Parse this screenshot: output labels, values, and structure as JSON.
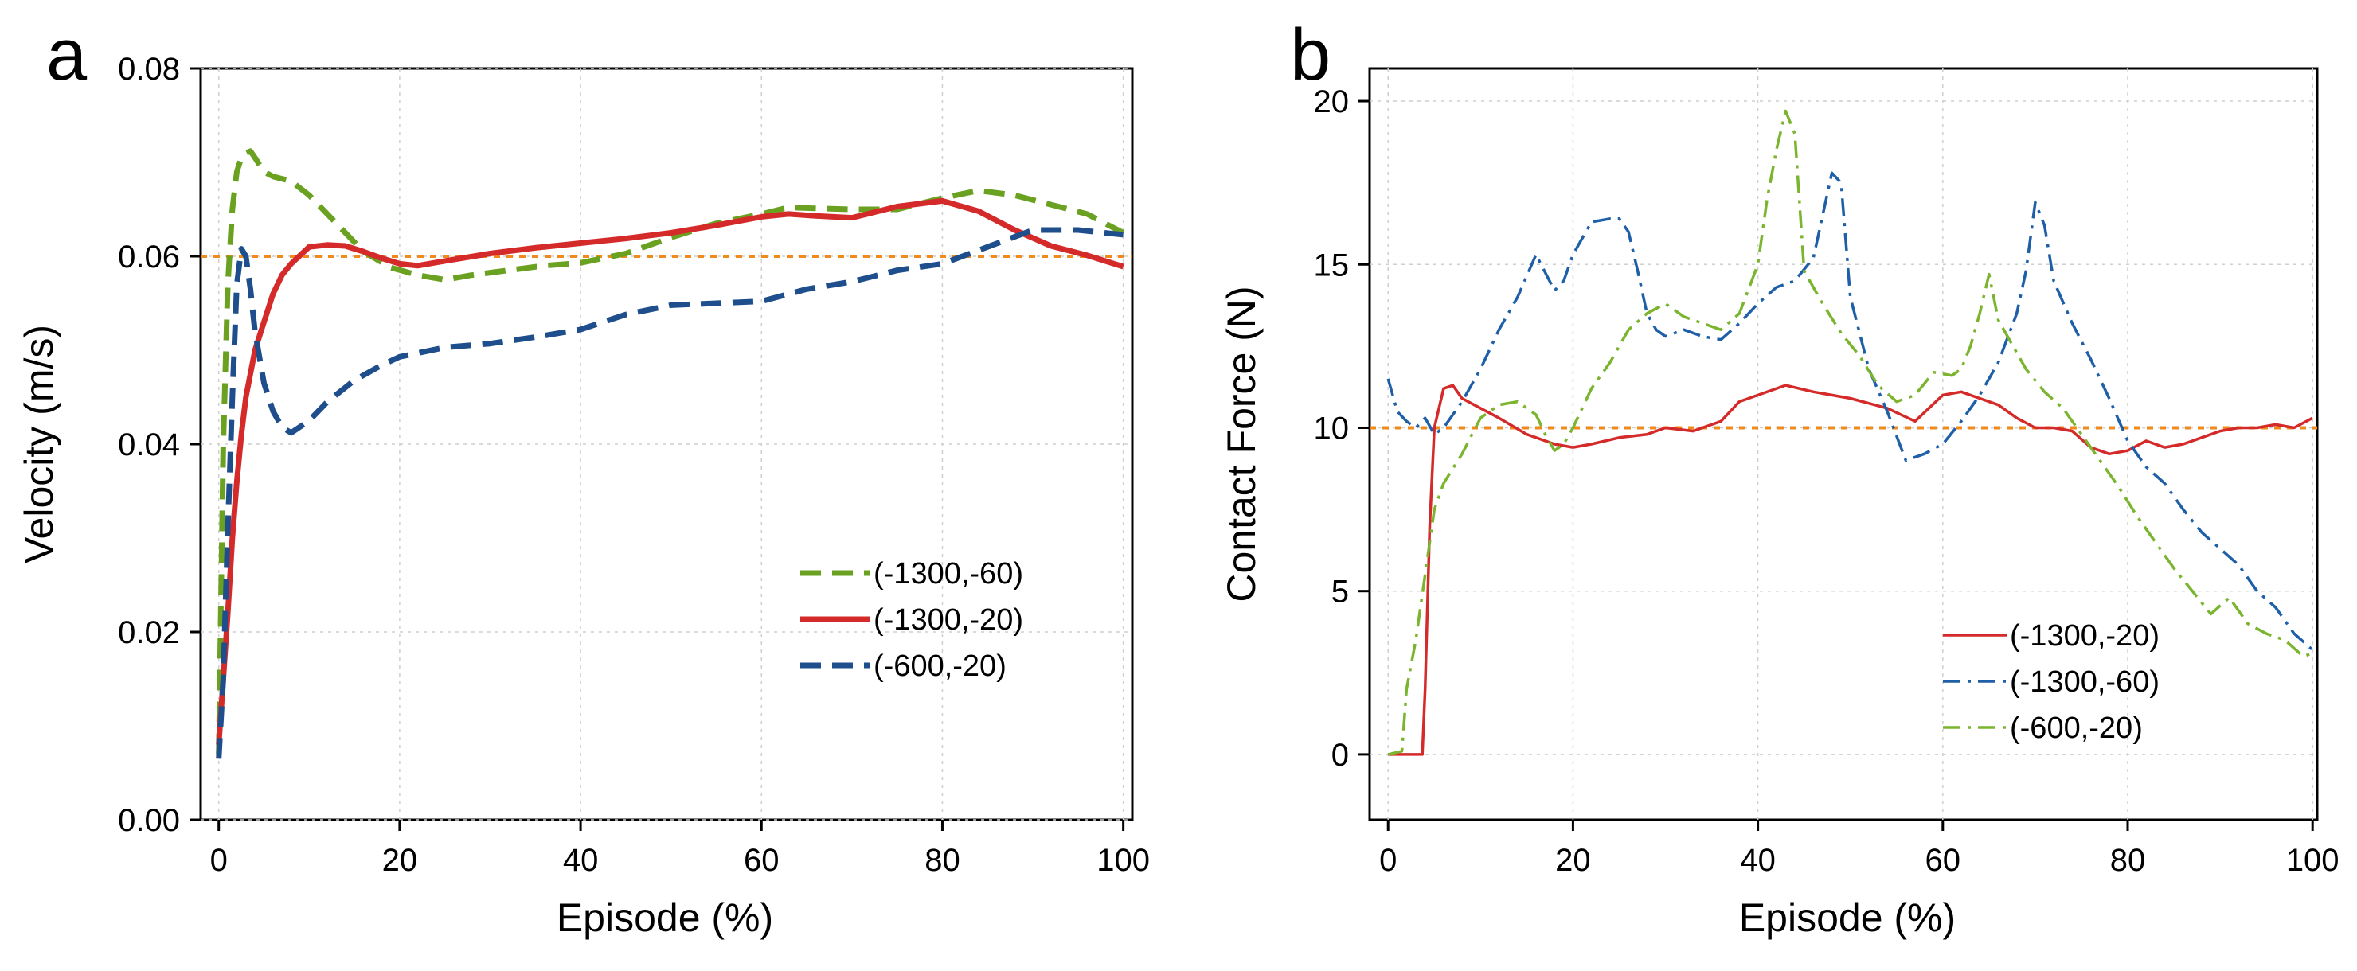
{
  "chart_data": [
    {
      "panel": "a",
      "type": "line",
      "title": "",
      "xlabel": "Episode (%)",
      "ylabel": "Velocity (m/s)",
      "xlim": [
        -2,
        101
      ],
      "ylim": [
        0.0,
        0.08
      ],
      "xticks": [
        0,
        20,
        40,
        60,
        80,
        100
      ],
      "xtick_labels": [
        "0",
        "20",
        "40",
        "60",
        "80",
        "100"
      ],
      "yticks": [
        0.0,
        0.02,
        0.04,
        0.06,
        0.08
      ],
      "ytick_labels": [
        "0.00",
        "0.02",
        "0.04",
        "0.06",
        "0.08"
      ],
      "grid": true,
      "legend_position": "right-middle",
      "reference_line": {
        "y": 0.06,
        "color": "#f08a1c",
        "style": "dotted"
      },
      "series": [
        {
          "name": "(-1300,-60)",
          "color": "#6aa121",
          "style": "dashed",
          "x": [
            0,
            0.5,
            1,
            1.5,
            2,
            2.5,
            3,
            3.5,
            4,
            5,
            6,
            8,
            10,
            13,
            16,
            19,
            22,
            25,
            28,
            32,
            36,
            40,
            45,
            50,
            55,
            60,
            63,
            66,
            70,
            75,
            80,
            84,
            88,
            92,
            96,
            100
          ],
          "y": [
            0.007,
            0.04,
            0.057,
            0.065,
            0.069,
            0.0705,
            0.071,
            0.0712,
            0.0705,
            0.069,
            0.0685,
            0.068,
            0.0665,
            0.0635,
            0.0605,
            0.0588,
            0.058,
            0.0575,
            0.058,
            0.0585,
            0.059,
            0.0593,
            0.0603,
            0.062,
            0.0635,
            0.0645,
            0.0652,
            0.0651,
            0.065,
            0.065,
            0.0662,
            0.067,
            0.0665,
            0.0655,
            0.0645,
            0.0625
          ]
        },
        {
          "name": "(-1300,-20)",
          "color": "#d42a2a",
          "style": "solid",
          "x": [
            0,
            0.5,
            1,
            1.5,
            2,
            2.5,
            3,
            4,
            5,
            6,
            7,
            8,
            10,
            12,
            14,
            16,
            18,
            20,
            22,
            25,
            30,
            35,
            40,
            45,
            50,
            55,
            60,
            63,
            66,
            70,
            75,
            80,
            84,
            88,
            92,
            96,
            100
          ],
          "y": [
            0.008,
            0.015,
            0.022,
            0.03,
            0.036,
            0.041,
            0.045,
            0.05,
            0.053,
            0.056,
            0.058,
            0.0592,
            0.061,
            0.0612,
            0.0611,
            0.0605,
            0.0598,
            0.0592,
            0.059,
            0.0595,
            0.0603,
            0.0609,
            0.0614,
            0.0619,
            0.0625,
            0.0633,
            0.0642,
            0.0645,
            0.0643,
            0.0641,
            0.0653,
            0.0659,
            0.0648,
            0.0628,
            0.0611,
            0.0601,
            0.0589
          ]
        },
        {
          "name": "(-600,-20)",
          "color": "#1f4e8c",
          "style": "dashed",
          "x": [
            0,
            0.5,
            1,
            1.5,
            2,
            2.5,
            3,
            3.5,
            4,
            5,
            6,
            7,
            8,
            10,
            12,
            15,
            18,
            20,
            25,
            30,
            35,
            40,
            45,
            50,
            55,
            60,
            65,
            70,
            75,
            80,
            85,
            90,
            95,
            100
          ],
          "y": [
            0.0065,
            0.015,
            0.031,
            0.045,
            0.057,
            0.0608,
            0.06,
            0.0565,
            0.052,
            0.0465,
            0.0435,
            0.0418,
            0.0412,
            0.0425,
            0.0445,
            0.0468,
            0.0484,
            0.0493,
            0.0503,
            0.0507,
            0.0514,
            0.0522,
            0.0538,
            0.0548,
            0.055,
            0.0552,
            0.0565,
            0.0573,
            0.0585,
            0.0592,
            0.061,
            0.0628,
            0.0628,
            0.0623
          ]
        }
      ]
    },
    {
      "panel": "b",
      "type": "line",
      "title": "",
      "xlabel": "Episode (%)",
      "ylabel": "Contact Force (N)",
      "xlim": [
        -2,
        100.5
      ],
      "ylim": [
        -2,
        21
      ],
      "xticks": [
        0,
        20,
        40,
        60,
        80,
        100
      ],
      "xtick_labels": [
        "0",
        "20",
        "40",
        "60",
        "80",
        "100"
      ],
      "yticks": [
        0,
        5,
        10,
        15,
        20
      ],
      "ytick_labels": [
        "0",
        "5",
        "10",
        "15",
        "20"
      ],
      "grid": true,
      "legend_position": "bottom-right",
      "reference_line": {
        "y": 10,
        "color": "#f08a1c",
        "style": "dotted"
      },
      "series": [
        {
          "name": "(-1300,-20)",
          "color": "#d42a2a",
          "style": "solid",
          "x": [
            0,
            1,
            2,
            3,
            3.7,
            4,
            4.5,
            5,
            6,
            7,
            8,
            10,
            12,
            15,
            18,
            20,
            22,
            25,
            28,
            30,
            33,
            36,
            38,
            40,
            43,
            46,
            50,
            54,
            57,
            60,
            62,
            64,
            66,
            68,
            70,
            72,
            74,
            76,
            78,
            80,
            82,
            84,
            86,
            88,
            90,
            92,
            94,
            96,
            98,
            100
          ],
          "y": [
            0,
            0,
            0,
            0,
            0,
            2,
            7,
            10,
            11.2,
            11.3,
            10.9,
            10.6,
            10.3,
            9.8,
            9.5,
            9.4,
            9.5,
            9.7,
            9.8,
            10.0,
            9.9,
            10.2,
            10.8,
            11.0,
            11.3,
            11.1,
            10.9,
            10.6,
            10.2,
            11.0,
            11.1,
            10.9,
            10.7,
            10.3,
            10.0,
            10.0,
            9.9,
            9.4,
            9.2,
            9.3,
            9.6,
            9.4,
            9.5,
            9.7,
            9.9,
            10.0,
            10.0,
            10.1,
            10.0,
            10.3
          ]
        },
        {
          "name": "(-1300,-60)",
          "color": "#1f5fa8",
          "style": "dashdot",
          "x": [
            0,
            1,
            2,
            3,
            4,
            5,
            6,
            8,
            10,
            12,
            14,
            16,
            18,
            19,
            20,
            22,
            24,
            25,
            26,
            27,
            28,
            29,
            30,
            32,
            34,
            36,
            38,
            40,
            42,
            44,
            46,
            47,
            48,
            49,
            50,
            52,
            54,
            56,
            58,
            60,
            62,
            64,
            66,
            68,
            69,
            70,
            71,
            72,
            74,
            76,
            78,
            80,
            82,
            84,
            86,
            88,
            90,
            92,
            94,
            96,
            98,
            100
          ],
          "y": [
            11.5,
            10.5,
            10.2,
            10.0,
            10.3,
            9.8,
            10.0,
            10.8,
            11.8,
            13.0,
            14.0,
            15.3,
            14.2,
            14.5,
            15.3,
            16.3,
            16.4,
            16.4,
            16.0,
            14.8,
            13.5,
            13.0,
            12.8,
            13.0,
            12.8,
            12.7,
            13.2,
            13.8,
            14.3,
            14.5,
            15.2,
            16.5,
            17.8,
            17.5,
            14.0,
            11.8,
            10.5,
            9.0,
            9.2,
            9.5,
            10.2,
            11.0,
            12.0,
            13.5,
            14.8,
            16.9,
            16.2,
            14.5,
            13.2,
            12.1,
            10.9,
            9.6,
            8.8,
            8.3,
            7.5,
            6.8,
            6.3,
            5.8,
            5.0,
            4.5,
            3.7,
            3.2
          ]
        },
        {
          "name": "(-600,-20)",
          "color": "#7bb52f",
          "style": "dashdot",
          "x": [
            0,
            1.5,
            2,
            3,
            4,
            5,
            6,
            8,
            10,
            12,
            14,
            16,
            17,
            18,
            19,
            20,
            22,
            24,
            26,
            28,
            30,
            32,
            34,
            36,
            38,
            40,
            41,
            42,
            43,
            44,
            45,
            47,
            49,
            51,
            53,
            55,
            57,
            59,
            61,
            62,
            63,
            64,
            65,
            66,
            67,
            69,
            71,
            73,
            75,
            77,
            79,
            81,
            83,
            85,
            87,
            89,
            91,
            93,
            95,
            97,
            99,
            100
          ],
          "y": [
            0,
            0.1,
            2.0,
            3.5,
            5.5,
            7.5,
            8.3,
            9.2,
            10.3,
            10.7,
            10.8,
            10.4,
            9.8,
            9.3,
            9.5,
            10.0,
            11.2,
            12.0,
            13.0,
            13.5,
            13.8,
            13.4,
            13.2,
            13.0,
            13.5,
            15.0,
            17.0,
            18.5,
            19.7,
            19.0,
            14.8,
            13.8,
            12.9,
            12.2,
            11.3,
            10.8,
            11.0,
            11.7,
            11.6,
            11.8,
            12.5,
            13.5,
            14.7,
            13.3,
            12.8,
            11.8,
            11.1,
            10.6,
            9.8,
            9.0,
            8.2,
            7.3,
            6.5,
            5.7,
            5.0,
            4.3,
            4.8,
            4.0,
            3.7,
            3.5,
            3.0,
            3.1
          ]
        }
      ]
    }
  ]
}
